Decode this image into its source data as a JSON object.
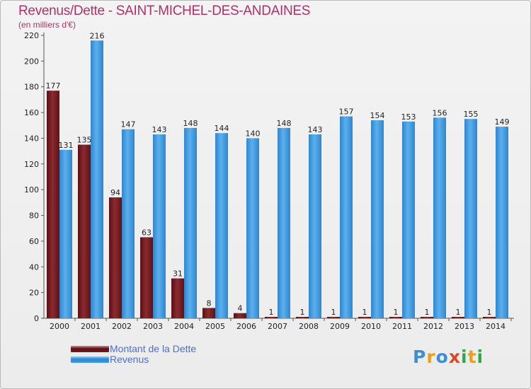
{
  "header": {
    "title": "Revenus/Dette - SAINT-MICHEL-DES-ANDAINES",
    "subtitle": "(en milliers d'€)"
  },
  "chart_data": {
    "type": "bar",
    "categories": [
      "2000",
      "2001",
      "2002",
      "2003",
      "2004",
      "2005",
      "2006",
      "2007",
      "2008",
      "2009",
      "2010",
      "2011",
      "2012",
      "2013",
      "2014"
    ],
    "series": [
      {
        "name": "Montant de la Dette",
        "color": "#7a1a1f",
        "values": [
          177,
          135,
          94,
          63,
          31,
          8,
          4,
          1,
          1,
          1,
          1,
          1,
          1,
          1,
          1
        ]
      },
      {
        "name": "Revenus",
        "color": "#3d9be0",
        "values": [
          131,
          216,
          147,
          143,
          148,
          144,
          140,
          148,
          143,
          157,
          154,
          153,
          156,
          155,
          149
        ]
      }
    ],
    "ylim": [
      0,
      220
    ],
    "yticks": [
      0,
      20,
      40,
      60,
      80,
      100,
      120,
      140,
      160,
      180,
      200,
      220
    ],
    "grid": false,
    "legend_position": "bottom-left"
  },
  "legend": {
    "items": [
      {
        "label": "Montant de la Dette",
        "color": "#7a1a1f"
      },
      {
        "label": "Revenus",
        "color": "#3d9be0"
      }
    ]
  },
  "logo": {
    "text": "Proxiti"
  }
}
